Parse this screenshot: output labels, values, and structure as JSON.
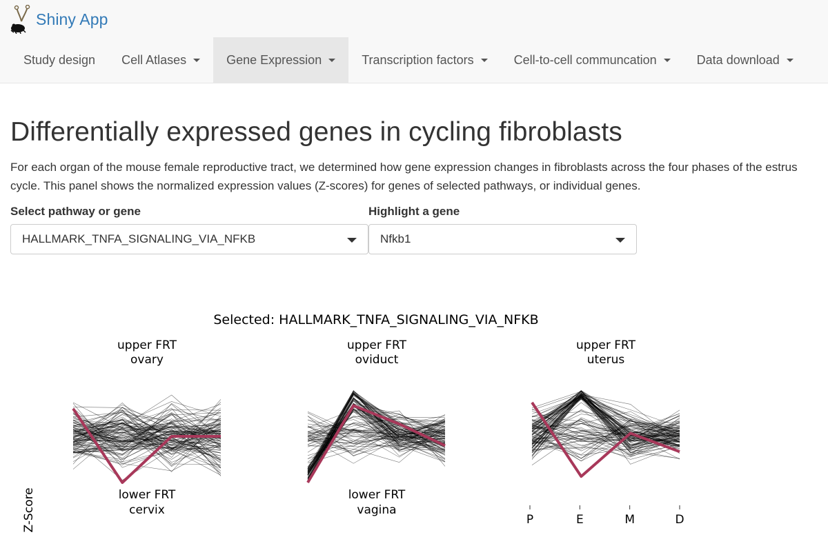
{
  "app": {
    "title": "Shiny App"
  },
  "nav": {
    "items": [
      {
        "label": "Study design",
        "dropdown": false,
        "active": false
      },
      {
        "label": "Cell Atlases",
        "dropdown": true,
        "active": false
      },
      {
        "label": "Gene Expression",
        "dropdown": true,
        "active": true
      },
      {
        "label": "Transcription factors",
        "dropdown": true,
        "active": false
      },
      {
        "label": "Cell-to-cell communcation",
        "dropdown": true,
        "active": false
      },
      {
        "label": "Data download",
        "dropdown": true,
        "active": false
      }
    ]
  },
  "page": {
    "title": "Differentially expressed genes in cycling fibroblasts",
    "description": "For each organ of the mouse female reproductive tract, we determined how gene expression changes in fibroblasts across the four phases of the estrus cycle. This panel shows the normalized expression values (Z-scores) for genes of selected pathways, or individual genes."
  },
  "controls": {
    "pathway": {
      "label": "Select pathway or gene",
      "value": "HALLMARK_TNFA_SIGNALING_VIA_NFKB"
    },
    "highlight": {
      "label": "Highlight a gene",
      "value": "Nfkb1"
    }
  },
  "colors": {
    "link": "#337ab7",
    "navbar_bg": "#f8f8f8",
    "nav_active_bg": "#e7e7e7",
    "highlight_line": "#a8385a",
    "gene_lines": "#000000"
  },
  "chart_data": {
    "type": "line",
    "title": "Selected: HALLMARK_TNFA_SIGNALING_VIA_NFKB",
    "ylabel": "Z-Score",
    "x_categories": [
      "P",
      "E",
      "M",
      "D"
    ],
    "ylim": [
      -1.5,
      1.5
    ],
    "highlighted_gene": "Nfkb1",
    "panels": [
      {
        "region": "upper FRT",
        "organ": "ovary",
        "highlight": [
          0.9,
          -1.5,
          0.0,
          0.0
        ],
        "background_hint": "many crossing gene profiles spanning full range"
      },
      {
        "region": "upper FRT",
        "organ": "oviduct",
        "highlight": [
          -1.5,
          1.0,
          0.4,
          -0.3
        ],
        "background_hint": "dense bundle rising from low P to high E"
      },
      {
        "region": "upper FRT",
        "organ": "uterus",
        "highlight": [
          1.1,
          -1.3,
          0.1,
          -0.5
        ],
        "background_hint": "profiles converging at high E"
      },
      {
        "region": "lower FRT",
        "organ": "cervix",
        "highlight": null,
        "background_hint": null
      },
      {
        "region": "lower FRT",
        "organ": "vagina",
        "highlight": null,
        "background_hint": null
      }
    ]
  }
}
